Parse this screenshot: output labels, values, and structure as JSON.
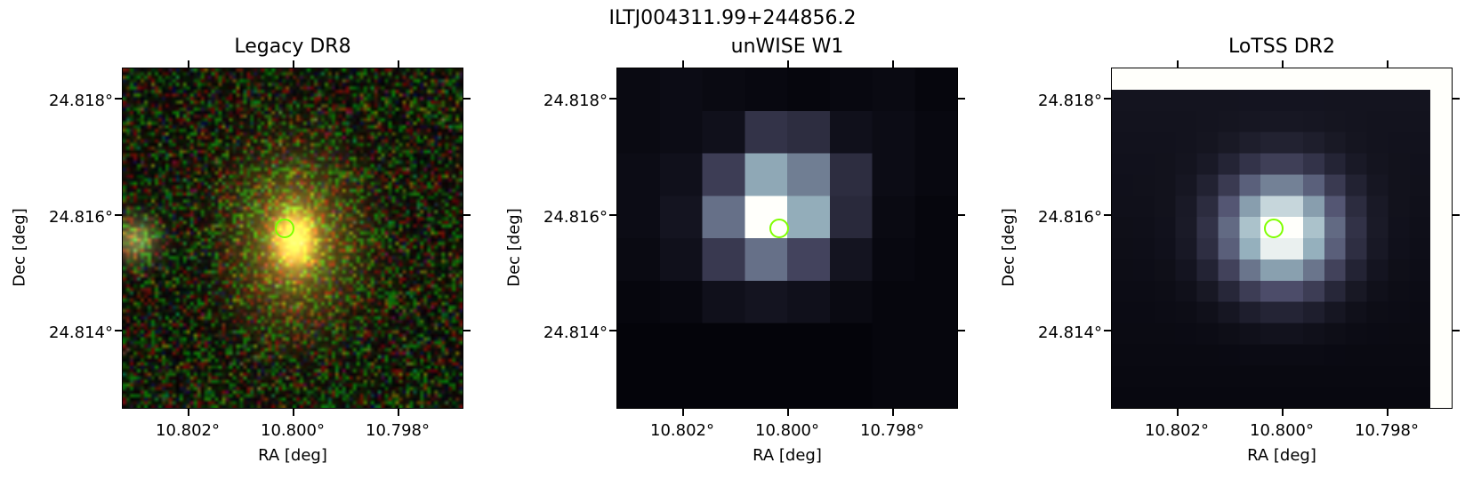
{
  "figure": {
    "suptitle": "ILTJ004311.99+244856.2",
    "panels": [
      {
        "title": "Legacy DR8",
        "xlabel": "RA [deg]",
        "ylabel": "Dec [deg]",
        "xticks": [
          "10.802°",
          "10.800°",
          "10.798°"
        ],
        "yticks": [
          "24.818°",
          "24.816°",
          "24.814°"
        ],
        "image_style": "optical-color",
        "marker_color": "#7fff00"
      },
      {
        "title": "unWISE W1",
        "xlabel": "RA [deg]",
        "ylabel": "Dec [deg]",
        "xticks": [
          "10.802°",
          "10.800°",
          "10.798°"
        ],
        "yticks": [
          "24.818°",
          "24.816°",
          "24.814°"
        ],
        "image_style": "bone-pixelated",
        "marker_color": "#7fff00"
      },
      {
        "title": "LoTSS DR2",
        "xlabel": "RA [deg]",
        "ylabel": "Dec [deg]",
        "xticks": [
          "10.802°",
          "10.800°",
          "10.798°"
        ],
        "yticks": [
          "24.818°",
          "24.816°",
          "24.814°"
        ],
        "image_style": "bone-smooth",
        "marker_color": "#7fff00"
      }
    ]
  }
}
